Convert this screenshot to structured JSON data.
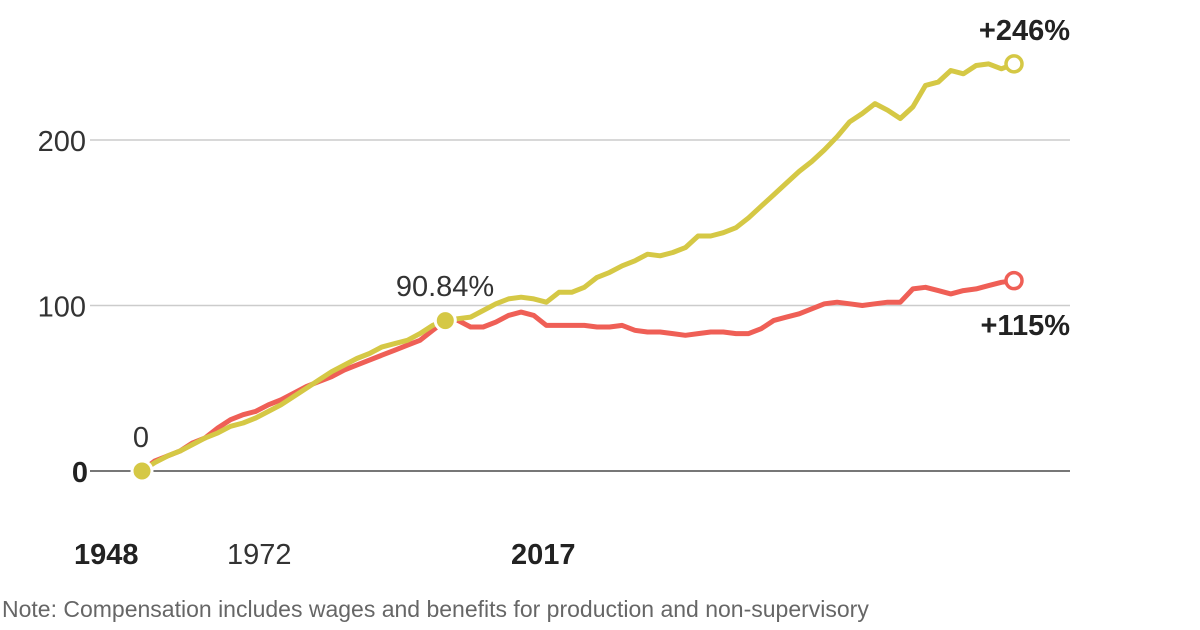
{
  "chart_data": {
    "type": "line",
    "title": "",
    "xlabel": "",
    "ylabel": "",
    "xlim": [
      1948,
      2017
    ],
    "ylim": [
      0,
      250
    ],
    "grid": true,
    "y_ticks": [
      "0",
      "100",
      "200"
    ],
    "y_tick_values": [
      0,
      100,
      200
    ],
    "x_tick_labels": [
      "1948",
      "1972",
      "2017"
    ],
    "colors": {
      "series_a": "#d5c845",
      "series_b": "#ef5f56"
    },
    "x": [
      1948,
      1949,
      1950,
      1951,
      1952,
      1953,
      1954,
      1955,
      1956,
      1957,
      1958,
      1959,
      1960,
      1961,
      1962,
      1963,
      1964,
      1965,
      1966,
      1967,
      1968,
      1969,
      1970,
      1971,
      1972,
      1973,
      1974,
      1975,
      1976,
      1977,
      1978,
      1979,
      1980,
      1981,
      1982,
      1983,
      1984,
      1985,
      1986,
      1987,
      1988,
      1989,
      1990,
      1991,
      1992,
      1993,
      1994,
      1995,
      1996,
      1997,
      1998,
      1999,
      2000,
      2001,
      2002,
      2003,
      2004,
      2005,
      2006,
      2007,
      2008,
      2009,
      2010,
      2011,
      2012,
      2013,
      2014,
      2015,
      2016,
      2017
    ],
    "series": [
      {
        "values": [
          0,
          5,
          9,
          12,
          16,
          20,
          23,
          27,
          29,
          32,
          36,
          40,
          45,
          50,
          55,
          60,
          64,
          68,
          71,
          75,
          77,
          79,
          83,
          88,
          90.84,
          92,
          93,
          97,
          101,
          104,
          105,
          104,
          102,
          108,
          108,
          111,
          117,
          120,
          124,
          127,
          131,
          130,
          132,
          135,
          142,
          142,
          144,
          147,
          153,
          160,
          167,
          174,
          181,
          187,
          194,
          202,
          211,
          216,
          222,
          218,
          213,
          220,
          233,
          235,
          242,
          240,
          245,
          246,
          243,
          246
        ]
      },
      {
        "values": [
          0,
          6,
          9,
          12,
          17,
          20,
          26,
          31,
          34,
          36,
          40,
          43,
          47,
          51,
          54,
          57,
          61,
          64,
          67,
          70,
          73,
          76,
          79,
          85,
          90.84,
          91,
          87,
          87,
          90,
          94,
          96,
          94,
          88,
          88,
          88,
          88,
          87,
          87,
          88,
          85,
          84,
          84,
          83,
          82,
          83,
          84,
          84,
          83,
          83,
          86,
          91,
          93,
          95,
          98,
          101,
          102,
          101,
          100,
          101,
          102,
          102,
          110,
          111,
          109,
          107,
          109,
          110,
          112,
          114,
          115
        ]
      }
    ],
    "annotations": {
      "start": "0",
      "midpoint": "90.84%",
      "end_a": "+246%",
      "end_b": "+115%"
    },
    "note": "Note: Compensation includes wages and benefits for production and non-supervisory"
  }
}
